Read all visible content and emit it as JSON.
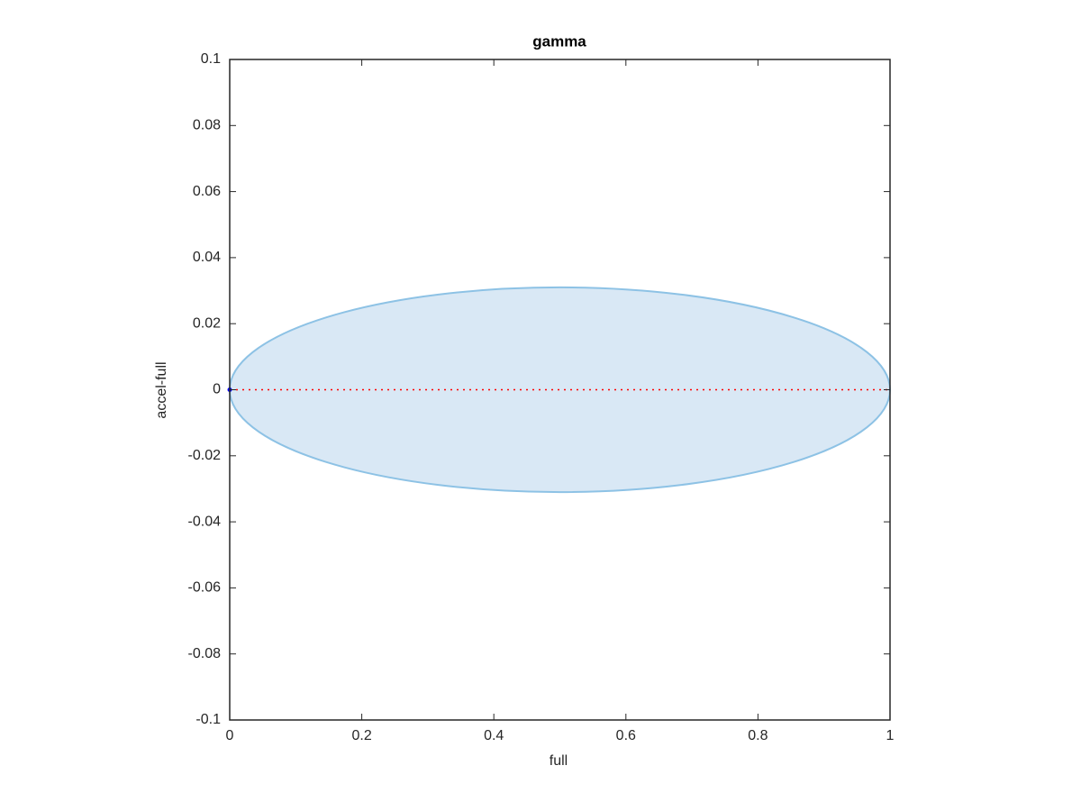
{
  "chart_data": {
    "type": "scatter",
    "title": "gamma",
    "x_label": "full",
    "y_label": "accel-full",
    "xlim": [
      0,
      1
    ],
    "xticks": [
      0,
      0.2,
      0.4,
      0.6,
      0.8,
      1
    ],
    "ylim": [
      -0.1,
      0.1
    ],
    "yticks": [
      -0.1,
      -0.08,
      -0.06,
      -0.04,
      -0.02,
      0,
      0.02,
      0.04,
      0.06,
      0.08,
      0.1
    ],
    "ellipse": {
      "cx": 0.5,
      "cy": 0,
      "rx": 0.5,
      "ry": 0.031,
      "color": "#d9e8f5",
      "edge_color": "#8dc2e5"
    },
    "series": [
      {
        "style": "dotted-line",
        "color": "#ff0000",
        "x": [
          0,
          1
        ],
        "y": [
          0,
          0
        ]
      },
      {
        "style": "point",
        "color": "#0000ff",
        "x": [
          0
        ],
        "y": [
          0
        ]
      }
    ]
  }
}
